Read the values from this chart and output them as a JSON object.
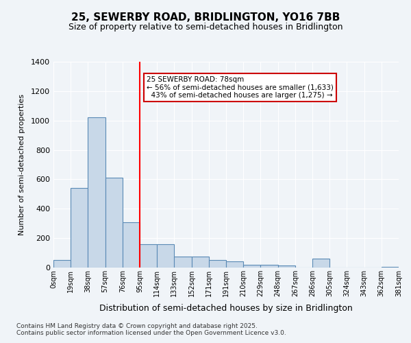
{
  "title": "25, SEWERBY ROAD, BRIDLINGTON, YO16 7BB",
  "subtitle": "Size of property relative to semi-detached houses in Bridlington",
  "xlabel": "Distribution of semi-detached houses by size in Bridlington",
  "ylabel": "Number of semi-detached properties",
  "bin_labels": [
    "0sqm",
    "19sqm",
    "38sqm",
    "57sqm",
    "76sqm",
    "95sqm",
    "114sqm",
    "133sqm",
    "152sqm",
    "171sqm",
    "191sqm",
    "210sqm",
    "229sqm",
    "248sqm",
    "267sqm",
    "286sqm",
    "305sqm",
    "324sqm",
    "343sqm",
    "362sqm",
    "381sqm"
  ],
  "bar_values": [
    50,
    540,
    1020,
    610,
    310,
    160,
    160,
    75,
    75,
    50,
    40,
    20,
    20,
    15,
    0,
    60,
    0,
    0,
    0,
    5
  ],
  "bar_color": "#c8d8e8",
  "bar_edge_color": "#5a8ab5",
  "red_line_x": 4,
  "pct_smaller": 56,
  "pct_larger": 43,
  "count_smaller": 1633,
  "count_larger": 1275,
  "annotation_box_color": "#ffffff",
  "annotation_box_edge": "#cc0000",
  "ymax": 1400,
  "yticks": [
    0,
    200,
    400,
    600,
    800,
    1000,
    1200,
    1400
  ],
  "footer": "Contains HM Land Registry data © Crown copyright and database right 2025.\nContains public sector information licensed under the Open Government Licence v3.0.",
  "background_color": "#f0f4f8",
  "grid_color": "#ffffff"
}
